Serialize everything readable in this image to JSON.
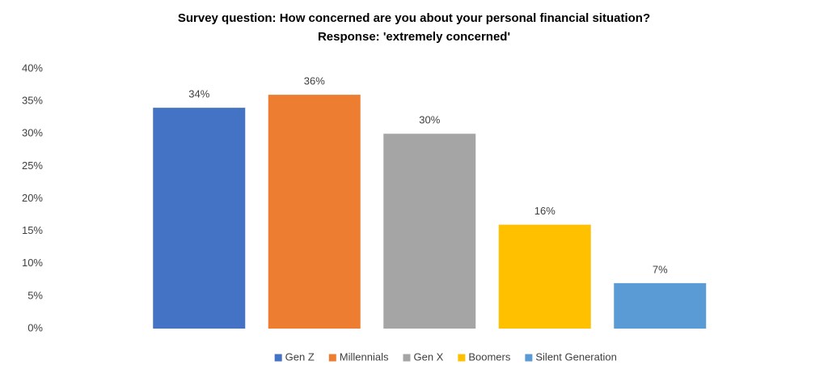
{
  "chart_data": {
    "type": "bar",
    "title": "Survey question: How concerned are you about your personal financial situation?",
    "subtitle": "Response: 'extremely concerned'",
    "series": [
      {
        "name": "Gen Z",
        "color": "#4472c4",
        "values": [
          34
        ],
        "value_labels": [
          "34%"
        ]
      },
      {
        "name": "Millennials",
        "color": "#ed7d31",
        "values": [
          36
        ],
        "value_labels": [
          "36%"
        ]
      },
      {
        "name": "Gen X",
        "color": "#a5a5a5",
        "values": [
          30
        ],
        "value_labels": [
          "30%"
        ]
      },
      {
        "name": "Boomers",
        "color": "#ffc000",
        "values": [
          16
        ],
        "value_labels": [
          "16%"
        ]
      },
      {
        "name": "Silent Generation",
        "color": "#5b9bd5",
        "values": [
          7
        ],
        "value_labels": [
          "7%"
        ]
      }
    ],
    "ylim": [
      0,
      40
    ],
    "yticks": [
      {
        "value": 0,
        "label": "0%"
      },
      {
        "value": 5,
        "label": "5%"
      },
      {
        "value": 10,
        "label": "10%"
      },
      {
        "value": 15,
        "label": "15%"
      },
      {
        "value": 20,
        "label": "20%"
      },
      {
        "value": 25,
        "label": "25%"
      },
      {
        "value": 30,
        "label": "30%"
      },
      {
        "value": 35,
        "label": "35%"
      },
      {
        "value": 40,
        "label": "40%"
      }
    ],
    "grid": false,
    "legend": "bottom"
  }
}
